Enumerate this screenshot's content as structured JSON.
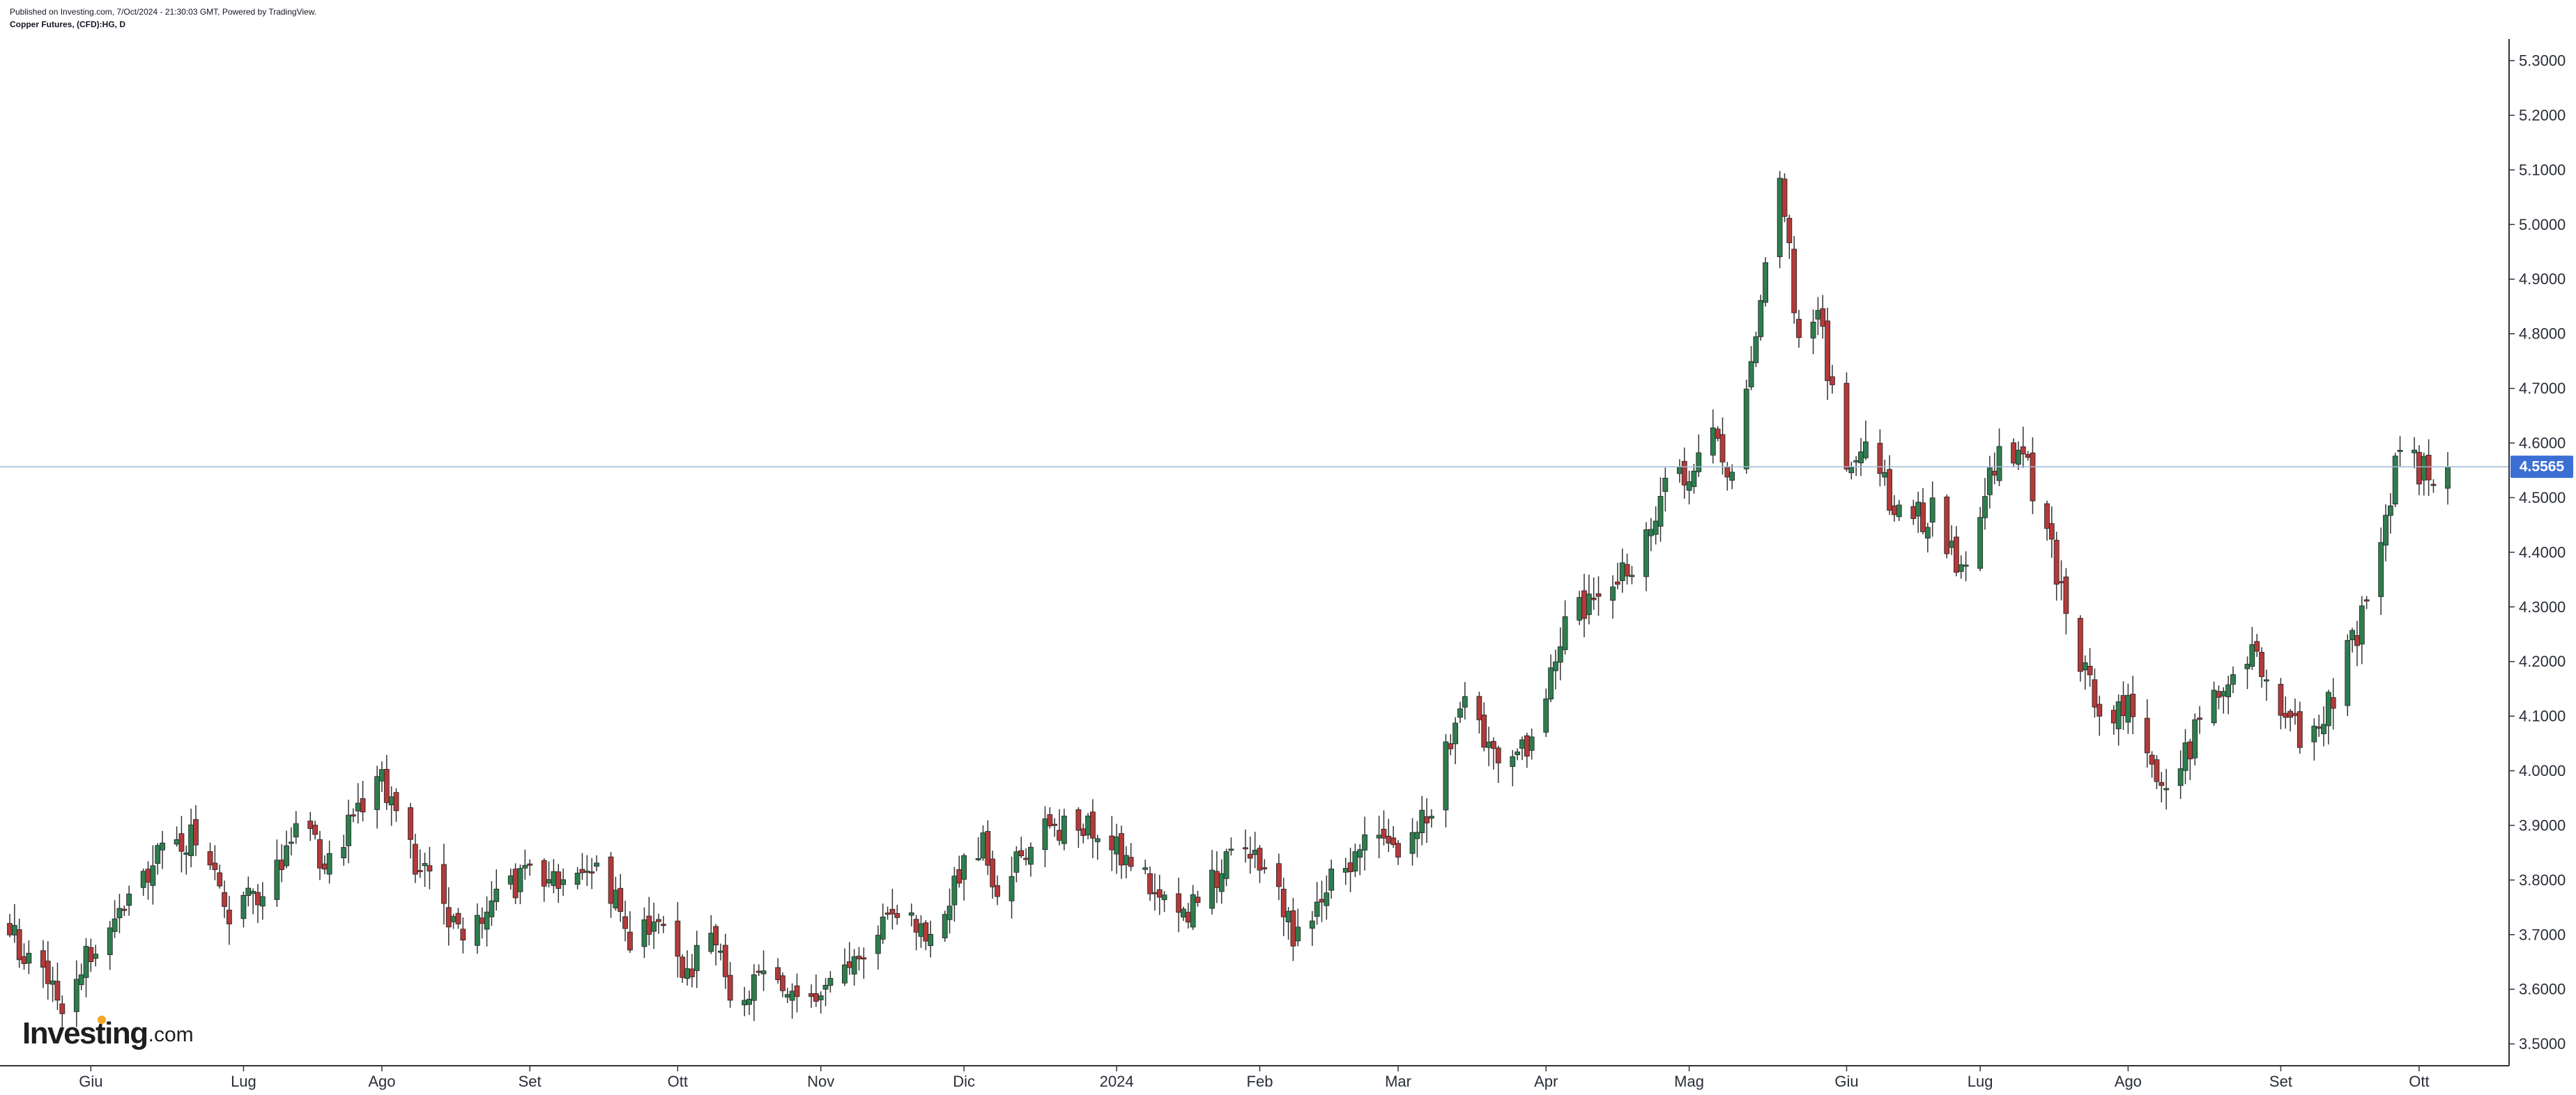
{
  "header": {
    "published": "Published on Investing.com, 7/Oct/2024 - 21:30:03 GMT, Powered by TradingView.",
    "instrument": "Copper Futures, (CFD):HG, D"
  },
  "logo": {
    "brand": "Investing",
    "tld": ".com"
  },
  "colors": {
    "up": "#2e7d4f",
    "down": "#b23a3a",
    "wick": "#333333",
    "price_line": "#9fb9cf",
    "price_badge": "#3b6fd4",
    "axis": "#333333"
  },
  "chart_data": {
    "type": "candlestick",
    "title": "",
    "xlabel": "",
    "ylabel": "",
    "ylim": [
      3.46,
      5.36
    ],
    "y_ticks": [
      "5.3000",
      "5.2000",
      "5.1000",
      "5.0000",
      "4.9000",
      "4.8000",
      "4.7000",
      "4.6000",
      "4.5000",
      "4.4000",
      "4.3000",
      "4.2000",
      "4.1000",
      "4.0000",
      "3.9000",
      "3.8000",
      "3.7000",
      "3.6000",
      "3.5000"
    ],
    "x_ticks": [
      {
        "label": "Giu",
        "date": "2023-06-01"
      },
      {
        "label": "Lug",
        "date": "2023-07-03"
      },
      {
        "label": "Ago",
        "date": "2023-08-01"
      },
      {
        "label": "Set",
        "date": "2023-09-01"
      },
      {
        "label": "Ott",
        "date": "2023-10-02"
      },
      {
        "label": "Nov",
        "date": "2023-11-01"
      },
      {
        "label": "Dic",
        "date": "2023-12-01"
      },
      {
        "label": "2024",
        "date": "2024-01-02"
      },
      {
        "label": "Feb",
        "date": "2024-02-01"
      },
      {
        "label": "Mar",
        "date": "2024-03-01"
      },
      {
        "label": "Apr",
        "date": "2024-04-01"
      },
      {
        "label": "Mag",
        "date": "2024-05-01"
      },
      {
        "label": "Giu",
        "date": "2024-06-03"
      },
      {
        "label": "Lug",
        "date": "2024-07-01"
      },
      {
        "label": "Ago",
        "date": "2024-08-01"
      },
      {
        "label": "Set",
        "date": "2024-09-02"
      },
      {
        "label": "Ott",
        "date": "2024-10-01"
      }
    ],
    "last_price": "4.5565",
    "close_anchors": [
      [
        "2023-05-15",
        3.7
      ],
      [
        "2023-05-26",
        3.58
      ],
      [
        "2023-06-01",
        3.68
      ],
      [
        "2023-06-09",
        3.78
      ],
      [
        "2023-06-16",
        3.86
      ],
      [
        "2023-06-23",
        3.88
      ],
      [
        "2023-06-30",
        3.74
      ],
      [
        "2023-07-07",
        3.78
      ],
      [
        "2023-07-14",
        3.9
      ],
      [
        "2023-07-21",
        3.83
      ],
      [
        "2023-07-31",
        4.0
      ],
      [
        "2023-08-08",
        3.84
      ],
      [
        "2023-08-18",
        3.68
      ],
      [
        "2023-08-25",
        3.76
      ],
      [
        "2023-09-01",
        3.82
      ],
      [
        "2023-09-08",
        3.78
      ],
      [
        "2023-09-15",
        3.84
      ],
      [
        "2023-09-22",
        3.7
      ],
      [
        "2023-09-29",
        3.74
      ],
      [
        "2023-10-04",
        3.62
      ],
      [
        "2023-10-09",
        3.7
      ],
      [
        "2023-10-13",
        3.6
      ],
      [
        "2023-10-20",
        3.62
      ],
      [
        "2023-10-27",
        3.58
      ],
      [
        "2023-11-01",
        3.6
      ],
      [
        "2023-11-10",
        3.68
      ],
      [
        "2023-11-17",
        3.72
      ],
      [
        "2023-11-24",
        3.7
      ],
      [
        "2023-11-30",
        3.82
      ],
      [
        "2023-12-05",
        3.86
      ],
      [
        "2023-12-08",
        3.76
      ],
      [
        "2023-12-15",
        3.88
      ],
      [
        "2023-12-22",
        3.9
      ],
      [
        "2023-12-29",
        3.9
      ],
      [
        "2024-01-05",
        3.84
      ],
      [
        "2024-01-12",
        3.76
      ],
      [
        "2024-01-19",
        3.75
      ],
      [
        "2024-01-26",
        3.86
      ],
      [
        "2024-02-02",
        3.82
      ],
      [
        "2024-02-09",
        3.69
      ],
      [
        "2024-02-16",
        3.82
      ],
      [
        "2024-02-23",
        3.86
      ],
      [
        "2024-03-01",
        3.86
      ],
      [
        "2024-03-08",
        3.93
      ],
      [
        "2024-03-14",
        4.12
      ],
      [
        "2024-03-22",
        4.04
      ],
      [
        "2024-03-28",
        4.03
      ],
      [
        "2024-04-05",
        4.28
      ],
      [
        "2024-04-12",
        4.3
      ],
      [
        "2024-04-19",
        4.38
      ],
      [
        "2024-04-26",
        4.52
      ],
      [
        "2024-05-01",
        4.55
      ],
      [
        "2024-05-06",
        4.62
      ],
      [
        "2024-05-10",
        4.53
      ],
      [
        "2024-05-15",
        4.78
      ],
      [
        "2024-05-20",
        5.1
      ],
      [
        "2024-05-24",
        4.78
      ],
      [
        "2024-05-28",
        4.83
      ],
      [
        "2024-06-03",
        4.57
      ],
      [
        "2024-06-07",
        4.6
      ],
      [
        "2024-06-14",
        4.46
      ],
      [
        "2024-06-21",
        4.47
      ],
      [
        "2024-06-28",
        4.36
      ],
      [
        "2024-07-05",
        4.6
      ],
      [
        "2024-07-10",
        4.58
      ],
      [
        "2024-07-16",
        4.4
      ],
      [
        "2024-07-22",
        4.2
      ],
      [
        "2024-07-26",
        4.1
      ],
      [
        "2024-08-01",
        4.12
      ],
      [
        "2024-08-07",
        3.96
      ],
      [
        "2024-08-12",
        4.02
      ],
      [
        "2024-08-19",
        4.13
      ],
      [
        "2024-08-26",
        4.22
      ],
      [
        "2024-08-30",
        4.18
      ],
      [
        "2024-09-06",
        4.06
      ],
      [
        "2024-09-12",
        4.12
      ],
      [
        "2024-09-19",
        4.28
      ],
      [
        "2024-09-24",
        4.46
      ],
      [
        "2024-09-27",
        4.6
      ],
      [
        "2024-10-01",
        4.55
      ],
      [
        "2024-10-04",
        4.55
      ],
      [
        "2024-10-07",
        4.5565
      ]
    ]
  }
}
